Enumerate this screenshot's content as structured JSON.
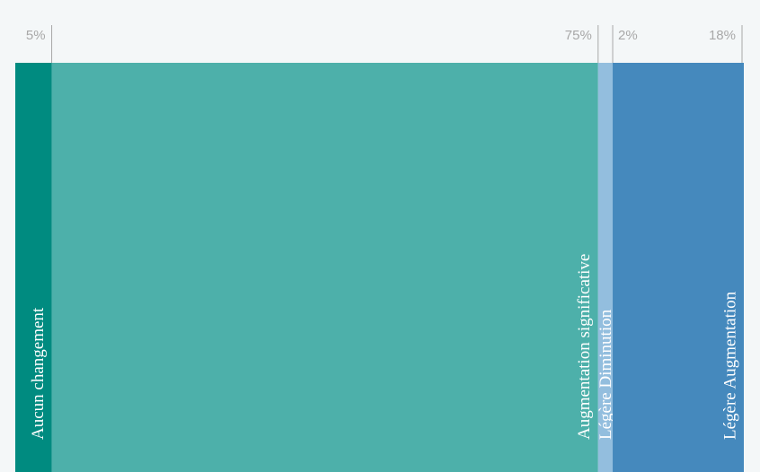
{
  "chart_data": {
    "type": "stacked_bar",
    "categories": [
      "Aucun changement",
      "Augmentation  significative",
      "Légère Diminution",
      "Légère Augmentation"
    ],
    "values": [
      5,
      75,
      2,
      18
    ],
    "value_labels": [
      "5%",
      "75%",
      "2%",
      "18%"
    ],
    "colors": [
      "#008b80",
      "#4db0aa",
      "#93bede",
      "#4589bd"
    ]
  }
}
